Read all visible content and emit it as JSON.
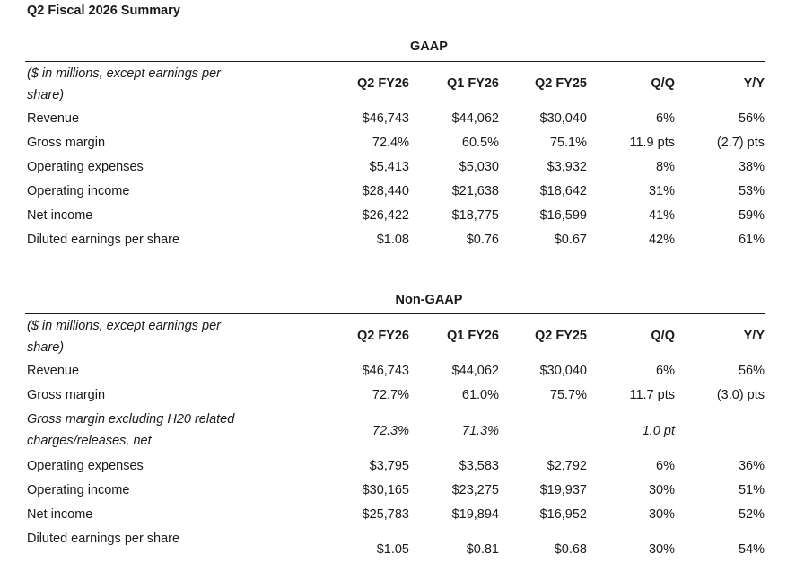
{
  "page_title": "Q2 Fiscal 2026 Summary",
  "gaap": {
    "title": "GAAP",
    "header": {
      "label": "($ in millions, except earnings per share)",
      "columns": [
        "Q2 FY26",
        "Q1 FY26",
        "Q2 FY25",
        "Q/Q",
        "Y/Y"
      ]
    },
    "rows": [
      {
        "label": "Revenue",
        "values": [
          "$46,743",
          "$44,062",
          "$30,040",
          "6%",
          "56%"
        ]
      },
      {
        "label": "Gross margin",
        "values": [
          "72.4%",
          "60.5%",
          "75.1%",
          "11.9 pts",
          "(2.7) pts"
        ]
      },
      {
        "label": "Operating expenses",
        "values": [
          "$5,413",
          "$5,030",
          "$3,932",
          "8%",
          "38%"
        ]
      },
      {
        "label": "Operating income",
        "values": [
          "$28,440",
          "$21,638",
          "$18,642",
          "31%",
          "53%"
        ]
      },
      {
        "label": "Net income",
        "values": [
          "$26,422",
          "$18,775",
          "$16,599",
          "41%",
          "59%"
        ]
      },
      {
        "label": "Diluted earnings per share",
        "values": [
          "$1.08",
          "$0.76",
          "$0.67",
          "42%",
          "61%"
        ]
      }
    ]
  },
  "non_gaap": {
    "title": "Non-GAAP",
    "header": {
      "label": "($ in millions, except earnings per share)",
      "columns": [
        "Q2 FY26",
        "Q1 FY26",
        "Q2 FY25",
        "Q/Q",
        "Y/Y"
      ]
    },
    "rows": [
      {
        "label": "Revenue",
        "values": [
          "$46,743",
          "$44,062",
          "$30,040",
          "6%",
          "56%"
        ]
      },
      {
        "label": "Gross margin",
        "values": [
          "72.7%",
          "61.0%",
          "75.7%",
          "11.7 pts",
          "(3.0) pts"
        ]
      },
      {
        "label": "Gross margin excluding H20 related charges/releases, net",
        "values": [
          "72.3%",
          "71.3%",
          "",
          "1.0 pt",
          ""
        ]
      },
      {
        "label": "Operating expenses",
        "values": [
          "$3,795",
          "$3,583",
          "$2,792",
          "6%",
          "36%"
        ]
      },
      {
        "label": "Operating income",
        "values": [
          "$30,165",
          "$23,275",
          "$19,937",
          "30%",
          "51%"
        ]
      },
      {
        "label": "Net income",
        "values": [
          "$25,783",
          "$19,894",
          "$16,952",
          "30%",
          "52%"
        ]
      },
      {
        "label": "Diluted earnings per share",
        "values": [
          "$1.05",
          "$0.81",
          "$0.68",
          "30%",
          "54%"
        ]
      }
    ]
  }
}
